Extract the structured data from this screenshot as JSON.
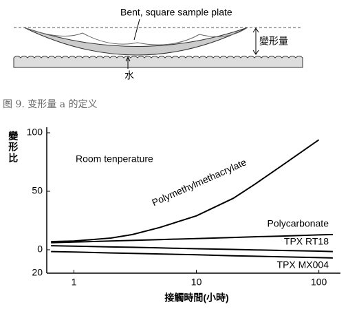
{
  "diagram": {
    "plate_label": "Bent, square sample plate",
    "deformation_label": "變形量",
    "water_label": "水"
  },
  "caption": "图 9. 变形量 a 的定义",
  "chart_data": {
    "type": "line",
    "x_label": "接觸時間(小時)",
    "y_label": "變形比",
    "annotation": "Room tenperature",
    "x": [
      0.65,
      1,
      2,
      3,
      5,
      10,
      20,
      30,
      50,
      100,
      130
    ],
    "xlim": [
      0.6,
      150
    ],
    "xticks": [
      1,
      10,
      100
    ],
    "x_log": true,
    "ylim": [
      -20,
      100
    ],
    "yticks": [
      100,
      50,
      0,
      {
        "value": -20,
        "label": "20"
      }
    ],
    "series": [
      {
        "name": "Polymethylmethacrylate",
        "color": "#000000",
        "values": [
          7,
          7.5,
          10,
          13,
          19,
          29,
          44,
          56,
          72,
          94,
          null
        ]
      },
      {
        "name": "Polycarbonate",
        "color": "#000000",
        "values": [
          6,
          6.6,
          7.5,
          8,
          8.7,
          9.6,
          10.5,
          11.1,
          11.7,
          12.7,
          13
        ]
      },
      {
        "name": "TPX RT18",
        "color": "#000000",
        "values": [
          3.5,
          3.1,
          2.4,
          2.1,
          1.6,
          0.9,
          0.3,
          -0.1,
          -0.6,
          -1.2,
          -1.5
        ]
      },
      {
        "name": "TPX MX004",
        "color": "#000000",
        "values": [
          -1.5,
          -1.9,
          -2.7,
          -3.1,
          -3.6,
          -4.3,
          -5.1,
          -5.5,
          -6,
          -6.7,
          -7
        ]
      }
    ]
  }
}
